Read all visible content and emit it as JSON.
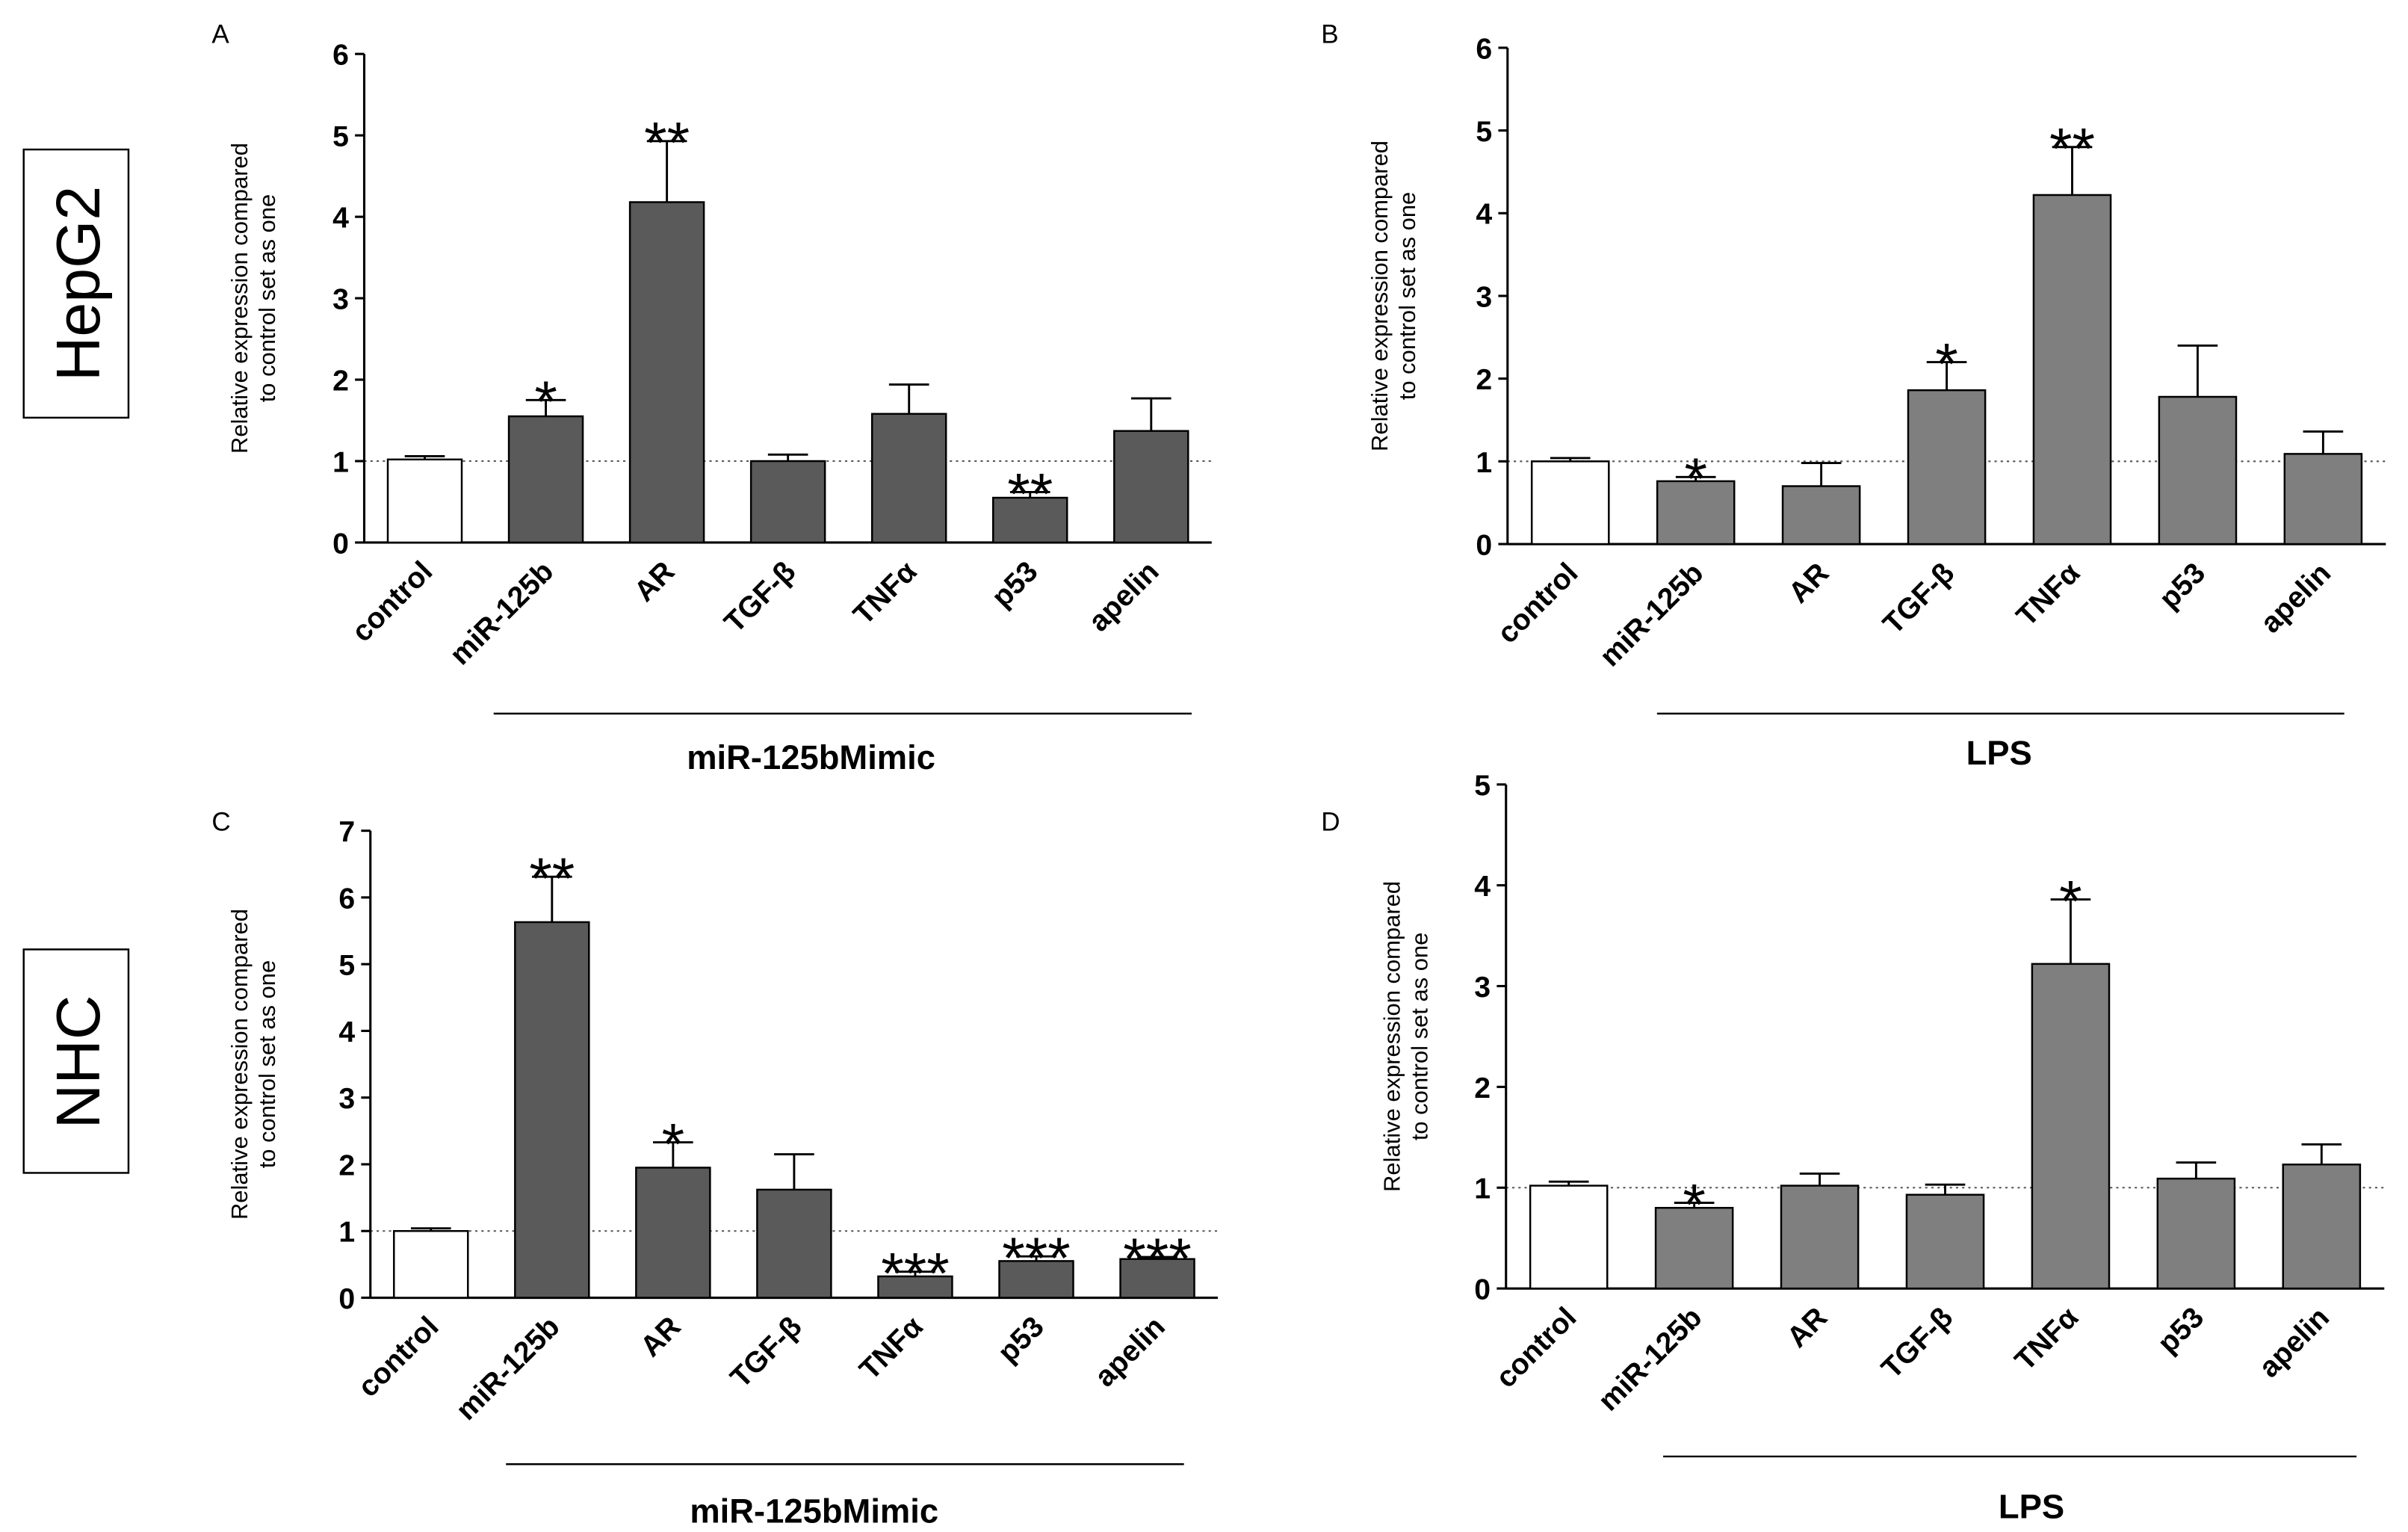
{
  "row_labels": [
    "HepG2",
    "NHC"
  ],
  "panels": [
    {
      "letter": "A",
      "group_label": "miR-125bMimic"
    },
    {
      "letter": "B",
      "group_label": "LPS"
    },
    {
      "letter": "C",
      "group_label": "miR-125bMimic"
    },
    {
      "letter": "D",
      "group_label": "LPS"
    }
  ],
  "colors": {
    "control_fill": "#ffffff",
    "dark_bar": "#5a5a5a",
    "mid_bar": "#7f7f7f",
    "stroke": "#000000"
  },
  "chart_data": [
    {
      "type": "bar",
      "panel": "A",
      "categories": [
        "control",
        "miR-125b",
        "AR",
        "TGF-β",
        "TNFα",
        "p53",
        "apelin"
      ],
      "values": [
        1.02,
        1.55,
        4.18,
        1.0,
        1.58,
        0.55,
        1.37
      ],
      "errors": [
        0.04,
        0.2,
        0.75,
        0.08,
        0.36,
        0.07,
        0.4
      ],
      "significance": [
        "",
        "*",
        "**",
        "",
        "",
        "**",
        ""
      ],
      "ylabel": "Relative expression compared to control set as one",
      "ylim": [
        0,
        6
      ],
      "yticks": [
        0,
        1,
        2,
        3,
        4,
        5,
        6
      ],
      "reference_line": 1,
      "bar_color": "dark"
    },
    {
      "type": "bar",
      "panel": "B",
      "categories": [
        "control",
        "miR-125b",
        "AR",
        "TGF-β",
        "TNFα",
        "p53",
        "apelin"
      ],
      "values": [
        1.0,
        0.76,
        0.7,
        1.86,
        4.22,
        1.78,
        1.09
      ],
      "errors": [
        0.04,
        0.05,
        0.28,
        0.34,
        0.58,
        0.62,
        0.27
      ],
      "significance": [
        "",
        "*",
        "",
        "*",
        "**",
        "",
        ""
      ],
      "ylabel": "Relative expression compared to control set as one",
      "ylim": [
        0,
        6
      ],
      "yticks": [
        0,
        1,
        2,
        3,
        4,
        5,
        6
      ],
      "reference_line": 1,
      "bar_color": "mid"
    },
    {
      "type": "bar",
      "panel": "C",
      "categories": [
        "control",
        "miR-125b",
        "AR",
        "TGF-β",
        "TNFα",
        "p53",
        "apelin"
      ],
      "values": [
        1.0,
        5.63,
        1.95,
        1.62,
        0.32,
        0.55,
        0.58
      ],
      "errors": [
        0.04,
        0.68,
        0.38,
        0.53,
        0.07,
        0.07,
        0.03
      ],
      "significance": [
        "",
        "**",
        "*",
        "",
        "***",
        "***",
        "***"
      ],
      "ylabel": "Relative expression compared to control set as one",
      "ylim": [
        0,
        7
      ],
      "yticks": [
        0,
        1,
        2,
        3,
        4,
        5,
        6,
        7
      ],
      "reference_line": 1,
      "bar_color": "dark"
    },
    {
      "type": "bar",
      "panel": "D",
      "categories": [
        "control",
        "miR-125b",
        "AR",
        "TGF-β",
        "TNFα",
        "p53",
        "apelin"
      ],
      "values": [
        1.02,
        0.8,
        1.02,
        0.93,
        3.22,
        1.09,
        1.23
      ],
      "errors": [
        0.04,
        0.05,
        0.12,
        0.1,
        0.64,
        0.16,
        0.2
      ],
      "significance": [
        "",
        "*",
        "",
        "",
        "*",
        "",
        ""
      ],
      "ylabel": "Relative expression compared to control set as one",
      "ylim": [
        0,
        5
      ],
      "yticks": [
        0,
        1,
        2,
        3,
        4,
        5
      ],
      "reference_line": 1,
      "bar_color": "mid"
    }
  ]
}
